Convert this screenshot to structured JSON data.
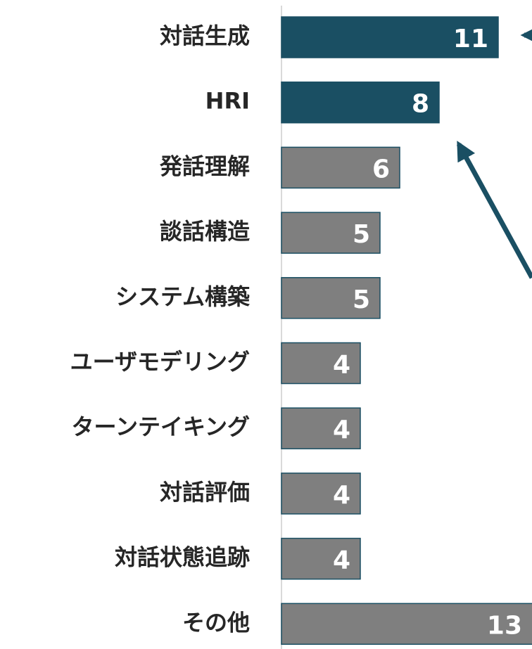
{
  "chart_data": {
    "type": "bar",
    "orientation": "horizontal",
    "categories": [
      "対話生成",
      "HRI",
      "発話理解",
      "談話構造",
      "システム構築",
      "ユーザモデリング",
      "ターンテイキング",
      "対話評価",
      "対話状態追跡",
      "その他"
    ],
    "values": [
      11,
      8,
      6,
      5,
      5,
      4,
      4,
      4,
      4,
      13
    ],
    "colors": [
      "#1a4f63",
      "#1a4f63",
      "#7f7f7f",
      "#7f7f7f",
      "#7f7f7f",
      "#7f7f7f",
      "#7f7f7f",
      "#7f7f7f",
      "#7f7f7f",
      "#7f7f7f"
    ],
    "xlim": [
      0,
      13
    ]
  }
}
